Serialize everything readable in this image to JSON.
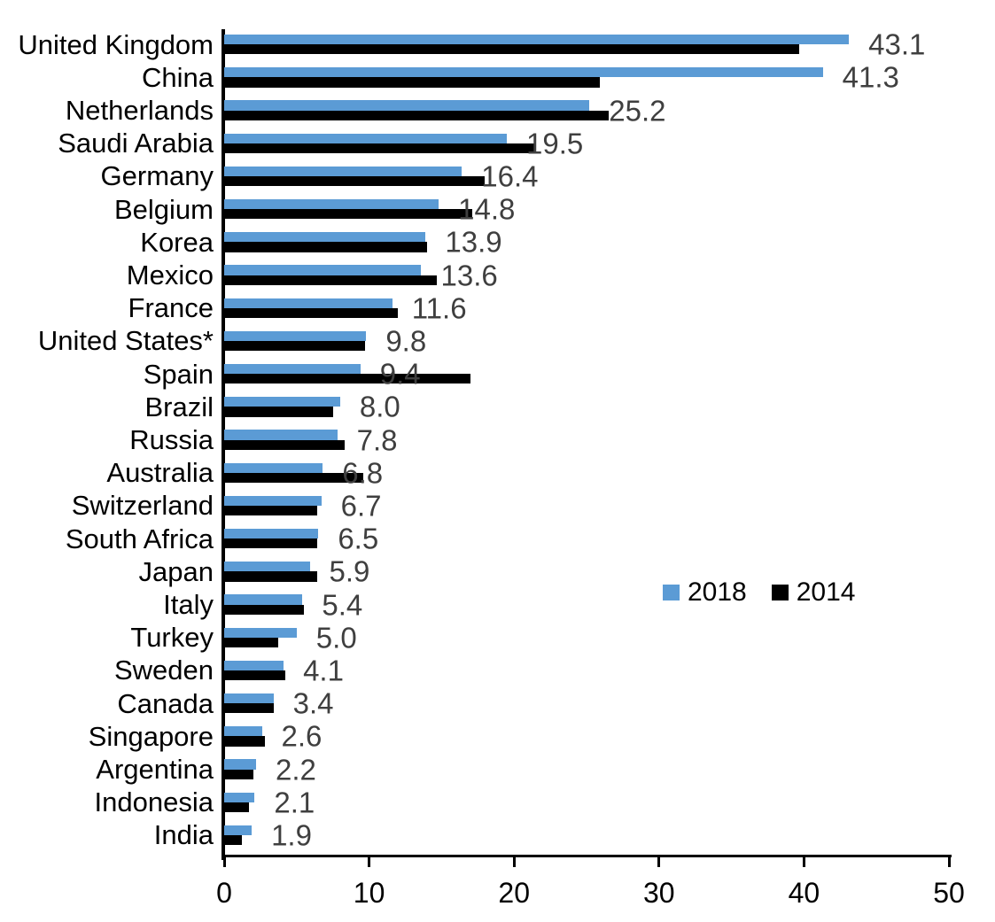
{
  "chart_data": {
    "type": "bar",
    "orientation": "horizontal",
    "title": "",
    "xlabel": "",
    "ylabel": "",
    "xlim": [
      0,
      50
    ],
    "x_ticks": [
      0,
      10,
      20,
      30,
      40,
      50
    ],
    "grid": false,
    "legend_position": "center-right",
    "value_label_color": "#3F3F3F",
    "axis_color": "#000000",
    "categories": [
      "United Kingdom",
      "China",
      "Netherlands",
      "Saudi Arabia",
      "Germany",
      "Belgium",
      "Korea",
      "Mexico",
      "France",
      "United States*",
      "Spain",
      "Brazil",
      "Russia",
      "Australia",
      "Switzerland",
      "South Africa",
      "Japan",
      "Italy",
      "Turkey",
      "Sweden",
      "Canada",
      "Singapore",
      "Argentina",
      "Indonesia",
      "India"
    ],
    "series": [
      {
        "name": "2018",
        "color": "#5B9BD5",
        "values": [
          43.1,
          41.3,
          25.2,
          19.5,
          16.4,
          14.8,
          13.9,
          13.6,
          11.6,
          9.8,
          9.4,
          8.0,
          7.8,
          6.8,
          6.7,
          6.5,
          5.9,
          5.4,
          5.0,
          4.1,
          3.4,
          2.6,
          2.2,
          2.1,
          1.9
        ]
      },
      {
        "name": "2014",
        "color": "#000000",
        "values": [
          39.7,
          25.9,
          26.5,
          21.4,
          18.0,
          17.1,
          14.0,
          14.7,
          12.0,
          9.7,
          17.0,
          7.5,
          8.3,
          9.6,
          6.4,
          6.4,
          6.4,
          5.5,
          3.7,
          4.2,
          3.4,
          2.8,
          2.0,
          1.7,
          1.2
        ]
      }
    ],
    "data_labels": [
      "43.1",
      "41.3",
      "25.2",
      "19.5",
      "16.4",
      "14.8",
      "13.9",
      "13.6",
      "11.6",
      "9.8",
      "9.4",
      "8.0",
      "7.8",
      "6.8",
      "6.7",
      "6.5",
      "5.9",
      "5.4",
      "5.0",
      "4.1",
      "3.4",
      "2.6",
      "2.2",
      "2.1",
      "1.9"
    ]
  },
  "legend": {
    "items": [
      {
        "label": "2018",
        "color": "#5B9BD5"
      },
      {
        "label": "2014",
        "color": "#000000"
      }
    ]
  }
}
